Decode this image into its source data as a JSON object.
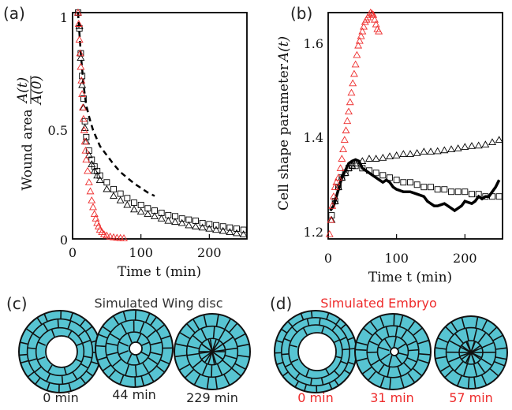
{
  "colors": {
    "wing": "#000000",
    "embryo": "#ee2b2b",
    "cell_fill": "#57c4d2",
    "cell_edge": "#111111"
  },
  "chart_data": [
    {
      "type": "scatter",
      "panel": "(a)",
      "xlabel": "Time t (min)",
      "ylabel_text": "Wound area",
      "ylabel_math_num": "A(t)",
      "ylabel_math_den": "A(0)",
      "xlim": [
        0,
        255
      ],
      "ylim": [
        0,
        1
      ],
      "xticks": [
        "0",
        "100",
        "200"
      ],
      "yticks": [
        "0",
        "0.5",
        "1"
      ],
      "grid": false,
      "series": [
        {
          "marker": "square",
          "color": "#000000",
          "points": [
            [
              8,
              1.0
            ],
            [
              10,
              0.93
            ],
            [
              12,
              0.82
            ],
            [
              14,
              0.72
            ],
            [
              16,
              0.62
            ],
            [
              18,
              0.52
            ],
            [
              20,
              0.45
            ],
            [
              24,
              0.39
            ],
            [
              28,
              0.35
            ],
            [
              32,
              0.32
            ],
            [
              36,
              0.3
            ],
            [
              40,
              0.28
            ],
            [
              50,
              0.25
            ],
            [
              60,
              0.22
            ],
            [
              70,
              0.2
            ],
            [
              80,
              0.18
            ],
            [
              90,
              0.16
            ],
            [
              100,
              0.15
            ],
            [
              110,
              0.135
            ],
            [
              120,
              0.125
            ],
            [
              130,
              0.115
            ],
            [
              140,
              0.105
            ],
            [
              150,
              0.1
            ],
            [
              160,
              0.09
            ],
            [
              170,
              0.085
            ],
            [
              180,
              0.08
            ],
            [
              190,
              0.07
            ],
            [
              200,
              0.065
            ],
            [
              210,
              0.06
            ],
            [
              220,
              0.055
            ],
            [
              230,
              0.05
            ],
            [
              240,
              0.045
            ],
            [
              250,
              0.04
            ]
          ]
        },
        {
          "marker": "triangle",
          "color": "#000000",
          "points": [
            [
              8,
              1.0
            ],
            [
              10,
              0.94
            ],
            [
              12,
              0.8
            ],
            [
              14,
              0.68
            ],
            [
              16,
              0.58
            ],
            [
              18,
              0.49
            ],
            [
              20,
              0.43
            ],
            [
              24,
              0.37
            ],
            [
              28,
              0.33
            ],
            [
              32,
              0.3
            ],
            [
              36,
              0.28
            ],
            [
              40,
              0.26
            ],
            [
              50,
              0.22
            ],
            [
              60,
              0.19
            ],
            [
              70,
              0.17
            ],
            [
              80,
              0.15
            ],
            [
              90,
              0.13
            ],
            [
              100,
              0.12
            ],
            [
              110,
              0.11
            ],
            [
              120,
              0.1
            ],
            [
              130,
              0.09
            ],
            [
              140,
              0.08
            ],
            [
              150,
              0.075
            ],
            [
              160,
              0.07
            ],
            [
              170,
              0.06
            ],
            [
              180,
              0.055
            ],
            [
              190,
              0.05
            ],
            [
              200,
              0.045
            ],
            [
              210,
              0.04
            ],
            [
              220,
              0.035
            ],
            [
              230,
              0.03
            ],
            [
              240,
              0.025
            ],
            [
              250,
              0.02
            ]
          ]
        },
        {
          "marker": "dashed-line",
          "color": "#000000",
          "points": [
            [
              8,
              1.0
            ],
            [
              12,
              0.82
            ],
            [
              16,
              0.68
            ],
            [
              20,
              0.59
            ],
            [
              25,
              0.53
            ],
            [
              30,
              0.48
            ],
            [
              40,
              0.41
            ],
            [
              50,
              0.37
            ],
            [
              60,
              0.33
            ],
            [
              70,
              0.295
            ],
            [
              80,
              0.27
            ],
            [
              90,
              0.245
            ],
            [
              100,
              0.225
            ],
            [
              110,
              0.205
            ],
            [
              120,
              0.19
            ]
          ]
        },
        {
          "marker": "triangle",
          "color": "#ee2b2b",
          "points": [
            [
              8,
              1.0
            ],
            [
              9,
              0.95
            ],
            [
              10,
              0.88
            ],
            [
              11,
              0.82
            ],
            [
              12,
              0.76
            ],
            [
              13,
              0.7
            ],
            [
              14,
              0.64
            ],
            [
              15,
              0.58
            ],
            [
              16,
              0.53
            ],
            [
              17,
              0.48
            ],
            [
              18,
              0.43
            ],
            [
              19,
              0.39
            ],
            [
              20,
              0.35
            ],
            [
              22,
              0.3
            ],
            [
              24,
              0.25
            ],
            [
              26,
              0.21
            ],
            [
              28,
              0.17
            ],
            [
              30,
              0.14
            ],
            [
              32,
              0.11
            ],
            [
              34,
              0.09
            ],
            [
              36,
              0.07
            ],
            [
              38,
              0.055
            ],
            [
              40,
              0.04
            ],
            [
              43,
              0.03
            ],
            [
              46,
              0.02
            ],
            [
              50,
              0.015
            ],
            [
              55,
              0.01
            ],
            [
              60,
              0.007
            ],
            [
              65,
              0.005
            ],
            [
              70,
              0.004
            ],
            [
              75,
              0.003
            ]
          ]
        }
      ]
    },
    {
      "type": "scatter",
      "panel": "(b)",
      "xlabel": "Time t (min)",
      "ylabel_text": "Cell shape parameter",
      "ylabel_math": "A(t)",
      "xlim": [
        0,
        255
      ],
      "ylim": [
        1.18,
        1.66
      ],
      "xticks": [
        "0",
        "100",
        "200"
      ],
      "yticks": [
        "1.2",
        "1.4",
        "1.6"
      ],
      "grid": false,
      "series": [
        {
          "marker": "triangle",
          "color": "#000000",
          "points": [
            [
              5,
              1.22
            ],
            [
              10,
              1.26
            ],
            [
              15,
              1.29
            ],
            [
              20,
              1.31
            ],
            [
              25,
              1.32
            ],
            [
              30,
              1.33
            ],
            [
              35,
              1.335
            ],
            [
              40,
              1.34
            ],
            [
              50,
              1.345
            ],
            [
              60,
              1.35
            ],
            [
              70,
              1.35
            ],
            [
              80,
              1.352
            ],
            [
              90,
              1.355
            ],
            [
              100,
              1.357
            ],
            [
              110,
              1.36
            ],
            [
              120,
              1.36
            ],
            [
              130,
              1.362
            ],
            [
              140,
              1.365
            ],
            [
              150,
              1.365
            ],
            [
              160,
              1.366
            ],
            [
              170,
              1.368
            ],
            [
              180,
              1.37
            ],
            [
              190,
              1.372
            ],
            [
              200,
              1.375
            ],
            [
              210,
              1.377
            ],
            [
              220,
              1.378
            ],
            [
              230,
              1.38
            ],
            [
              240,
              1.385
            ],
            [
              250,
              1.39
            ]
          ]
        },
        {
          "marker": "square",
          "color": "#000000",
          "points": [
            [
              5,
              1.23
            ],
            [
              10,
              1.26
            ],
            [
              15,
              1.29
            ],
            [
              20,
              1.31
            ],
            [
              25,
              1.32
            ],
            [
              30,
              1.33
            ],
            [
              35,
              1.335
            ],
            [
              40,
              1.335
            ],
            [
              50,
              1.33
            ],
            [
              60,
              1.325
            ],
            [
              70,
              1.32
            ],
            [
              80,
              1.315
            ],
            [
              90,
              1.31
            ],
            [
              100,
              1.305
            ],
            [
              110,
              1.3
            ],
            [
              120,
              1.3
            ],
            [
              130,
              1.295
            ],
            [
              140,
              1.29
            ],
            [
              150,
              1.29
            ],
            [
              160,
              1.285
            ],
            [
              170,
              1.285
            ],
            [
              180,
              1.28
            ],
            [
              190,
              1.28
            ],
            [
              200,
              1.28
            ],
            [
              210,
              1.275
            ],
            [
              220,
              1.275
            ],
            [
              230,
              1.27
            ],
            [
              240,
              1.27
            ],
            [
              250,
              1.27
            ]
          ]
        },
        {
          "marker": "solid-line",
          "color": "#000000",
          "points": [
            [
              3,
              1.24
            ],
            [
              8,
              1.25
            ],
            [
              12,
              1.27
            ],
            [
              16,
              1.29
            ],
            [
              20,
              1.31
            ],
            [
              25,
              1.325
            ],
            [
              30,
              1.34
            ],
            [
              35,
              1.345
            ],
            [
              40,
              1.348
            ],
            [
              45,
              1.345
            ],
            [
              50,
              1.33
            ],
            [
              55,
              1.325
            ],
            [
              60,
              1.32
            ],
            [
              65,
              1.315
            ],
            [
              70,
              1.31
            ],
            [
              75,
              1.305
            ],
            [
              80,
              1.3
            ],
            [
              85,
              1.305
            ],
            [
              90,
              1.3
            ],
            [
              95,
              1.29
            ],
            [
              100,
              1.285
            ],
            [
              110,
              1.28
            ],
            [
              120,
              1.28
            ],
            [
              130,
              1.275
            ],
            [
              140,
              1.27
            ],
            [
              145,
              1.26
            ],
            [
              150,
              1.255
            ],
            [
              155,
              1.25
            ],
            [
              160,
              1.25
            ],
            [
              170,
              1.255
            ],
            [
              180,
              1.245
            ],
            [
              185,
              1.24
            ],
            [
              190,
              1.245
            ],
            [
              195,
              1.25
            ],
            [
              200,
              1.26
            ],
            [
              210,
              1.255
            ],
            [
              215,
              1.26
            ],
            [
              220,
              1.27
            ],
            [
              225,
              1.265
            ],
            [
              230,
              1.27
            ],
            [
              235,
              1.27
            ],
            [
              240,
              1.28
            ],
            [
              245,
              1.29
            ],
            [
              250,
              1.305
            ]
          ]
        },
        {
          "marker": "triangle",
          "color": "#ee2b2b",
          "points": [
            [
              2,
              1.19
            ],
            [
              4,
              1.22
            ],
            [
              6,
              1.25
            ],
            [
              8,
              1.27
            ],
            [
              10,
              1.29
            ],
            [
              12,
              1.3
            ],
            [
              15,
              1.31
            ],
            [
              18,
              1.33
            ],
            [
              20,
              1.35
            ],
            [
              22,
              1.37
            ],
            [
              24,
              1.39
            ],
            [
              26,
              1.41
            ],
            [
              28,
              1.43
            ],
            [
              30,
              1.45
            ],
            [
              32,
              1.47
            ],
            [
              34,
              1.49
            ],
            [
              36,
              1.51
            ],
            [
              38,
              1.53
            ],
            [
              40,
              1.55
            ],
            [
              42,
              1.57
            ],
            [
              44,
              1.59
            ],
            [
              46,
              1.6
            ],
            [
              48,
              1.61
            ],
            [
              50,
              1.62
            ],
            [
              52,
              1.63
            ],
            [
              54,
              1.64
            ],
            [
              56,
              1.645
            ],
            [
              58,
              1.65
            ],
            [
              60,
              1.655
            ],
            [
              62,
              1.66
            ],
            [
              64,
              1.658
            ],
            [
              66,
              1.655
            ],
            [
              68,
              1.645
            ],
            [
              70,
              1.635
            ],
            [
              72,
              1.625
            ],
            [
              74,
              1.62
            ]
          ]
        }
      ]
    }
  ],
  "panel_c": {
    "letter": "(c)",
    "title": "Simulated Wing disc",
    "times": [
      "0 min",
      "44 min",
      "229 min"
    ]
  },
  "panel_d": {
    "letter": "(d)",
    "title": "Simulated Embryo",
    "times": [
      "0 min",
      "31 min",
      "57 min"
    ]
  }
}
